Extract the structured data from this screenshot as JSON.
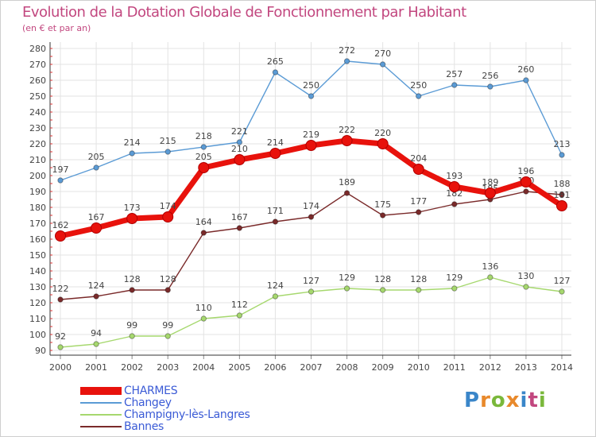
{
  "title": "Evolution de la Dotation Globale de Fonctionnement par Habitant",
  "subtitle": "(en € et par an)",
  "logo": {
    "text": "Proxiti",
    "colors": [
      "#3a86c9",
      "#e8892b",
      "#7ab83b",
      "#e8892b",
      "#3a86c9",
      "#c2477f",
      "#7ab83b"
    ]
  },
  "chart_data": {
    "type": "line",
    "x": [
      "2000",
      "2001",
      "2002",
      "2003",
      "2004",
      "2005",
      "2006",
      "2007",
      "2008",
      "2009",
      "2010",
      "2011",
      "2012",
      "2013",
      "2014"
    ],
    "ylim": [
      90,
      280
    ],
    "yticks": [
      90,
      100,
      110,
      120,
      130,
      140,
      150,
      160,
      170,
      180,
      190,
      200,
      210,
      220,
      230,
      240,
      250,
      260,
      270,
      280
    ],
    "grid": true,
    "legend_position": "bottom-left",
    "series": [
      {
        "name": "CHARMES",
        "color": "#e8120c",
        "values": [
          162,
          167,
          173,
          174,
          205,
          210,
          214,
          219,
          222,
          220,
          204,
          193,
          189,
          196,
          181
        ]
      },
      {
        "name": "Changey",
        "color": "#5b9bd5",
        "values": [
          197,
          205,
          214,
          215,
          218,
          221,
          265,
          250,
          272,
          270,
          250,
          257,
          256,
          260,
          213
        ]
      },
      {
        "name": "Champigny-lès-Langres",
        "color": "#a6d86e",
        "values": [
          92,
          94,
          99,
          99,
          110,
          112,
          124,
          127,
          129,
          128,
          128,
          129,
          136,
          130,
          127
        ]
      },
      {
        "name": "Bannes",
        "color": "#7a2a2a",
        "values": [
          122,
          124,
          128,
          128,
          164,
          167,
          171,
          174,
          189,
          175,
          177,
          182,
          185,
          190,
          188
        ]
      }
    ]
  }
}
